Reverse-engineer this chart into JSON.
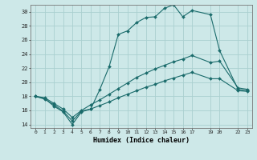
{
  "xlabel": "Humidex (Indice chaleur)",
  "bg_color": "#cde8e8",
  "grid_color": "#aacfcf",
  "line_color": "#1a6b6b",
  "xlim": [
    -0.5,
    23.5
  ],
  "ylim": [
    13.5,
    31.0
  ],
  "yticks": [
    14,
    16,
    18,
    20,
    22,
    24,
    26,
    28,
    30
  ],
  "xtick_positions": [
    0,
    1,
    2,
    3,
    4,
    5,
    6,
    7,
    8,
    9,
    10,
    11,
    12,
    13,
    14,
    15,
    16,
    17,
    19,
    20,
    22,
    23
  ],
  "xtick_labels": [
    "0",
    "1",
    "2",
    "3",
    "4",
    "5",
    "6",
    "7",
    "8",
    "9",
    "10",
    "11",
    "12",
    "13",
    "14",
    "15",
    "16",
    "17",
    "19",
    "20",
    "22",
    "23"
  ],
  "line1_x": [
    0,
    1,
    2,
    3,
    4,
    5,
    6,
    7,
    8,
    9,
    10,
    11,
    12,
    13,
    14,
    15,
    16,
    17,
    19,
    20,
    22,
    23
  ],
  "line1_y": [
    18.0,
    17.7,
    16.6,
    15.8,
    14.0,
    15.8,
    16.2,
    19.0,
    22.2,
    26.8,
    27.3,
    28.5,
    29.2,
    29.3,
    30.5,
    31.0,
    29.3,
    30.2,
    29.6,
    24.5,
    19.0,
    18.8
  ],
  "line2_x": [
    0,
    1,
    2,
    3,
    4,
    5,
    6,
    7,
    8,
    9,
    10,
    11,
    12,
    13,
    14,
    15,
    16,
    17,
    19,
    20,
    22,
    23
  ],
  "line2_y": [
    18.0,
    17.8,
    17.0,
    16.2,
    15.0,
    16.0,
    16.8,
    17.5,
    18.3,
    19.1,
    19.9,
    20.7,
    21.3,
    21.9,
    22.4,
    22.9,
    23.3,
    23.8,
    22.8,
    23.0,
    19.2,
    19.0
  ],
  "line3_x": [
    0,
    1,
    2,
    3,
    4,
    5,
    6,
    7,
    8,
    9,
    10,
    11,
    12,
    13,
    14,
    15,
    16,
    17,
    19,
    20,
    22,
    23
  ],
  "line3_y": [
    18.0,
    17.6,
    16.8,
    15.9,
    14.5,
    15.9,
    16.2,
    16.7,
    17.2,
    17.8,
    18.3,
    18.8,
    19.3,
    19.7,
    20.2,
    20.6,
    21.0,
    21.4,
    20.5,
    20.5,
    18.8,
    18.7
  ]
}
